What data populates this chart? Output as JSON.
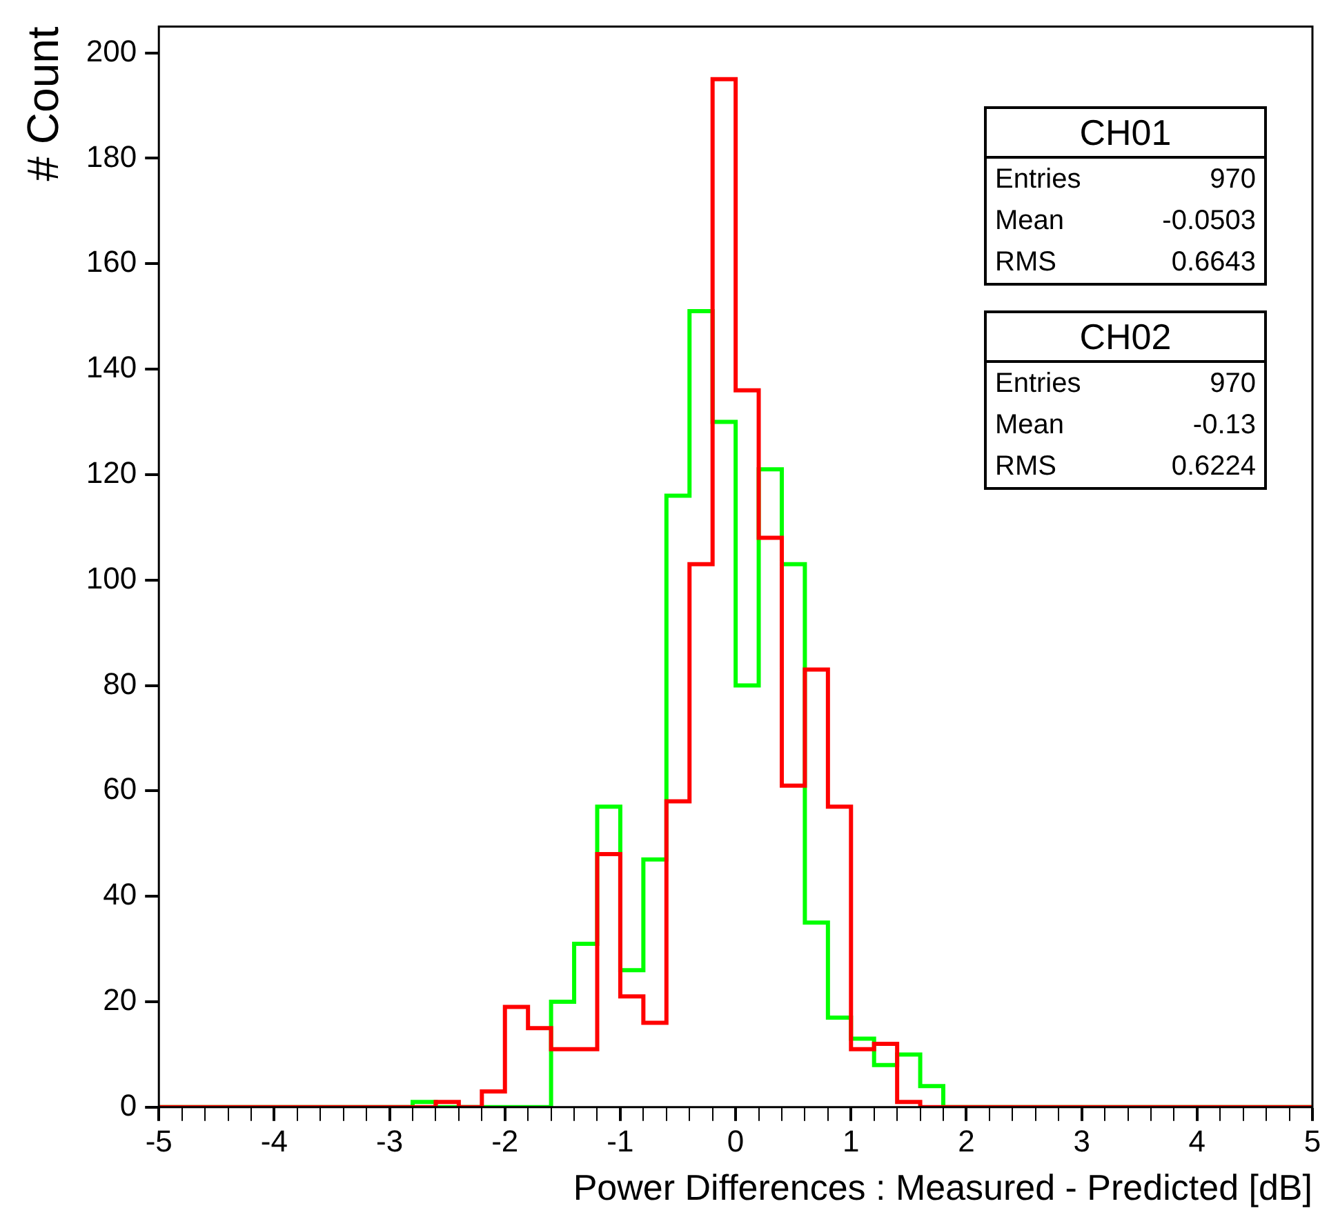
{
  "chart_data": {
    "type": "histogram",
    "xlabel": "Power Differences : Measured - Predicted [dB]",
    "ylabel": "# Count",
    "bins": [
      -5,
      -4.8,
      -4.6,
      -4.4,
      -4.2,
      -4,
      -3.8,
      -3.6,
      -3.4,
      -3.2,
      -3,
      -2.8,
      -2.6,
      -2.4,
      -2.2,
      -2,
      -1.8,
      -1.6,
      -1.4,
      -1.2,
      -1,
      -0.8,
      -0.6,
      -0.4,
      -0.2,
      0,
      0.2,
      0.4,
      0.6,
      0.8,
      1,
      1.2,
      1.4,
      1.6,
      1.8,
      2,
      2.2,
      2.4,
      2.6,
      2.8,
      3,
      3.2,
      3.4,
      3.6,
      3.8,
      4,
      4.2,
      4.4,
      4.6,
      4.8,
      5
    ],
    "series": [
      {
        "color": "#ff0000",
        "values": [
          0,
          0,
          0,
          0,
          0,
          0,
          0,
          0,
          0,
          0,
          0,
          0,
          1,
          0,
          3,
          19,
          15,
          11,
          11,
          48,
          21,
          16,
          58,
          103,
          195,
          136,
          108,
          61,
          83,
          57,
          11,
          12,
          1,
          0,
          0,
          0,
          0,
          0,
          0,
          0,
          0,
          0,
          0,
          0,
          0,
          0,
          0,
          0,
          0,
          0
        ]
      },
      {
        "color": "#00ff00",
        "values": [
          0,
          0,
          0,
          0,
          0,
          0,
          0,
          0,
          0,
          0,
          0,
          1,
          0,
          0,
          0,
          0,
          0,
          20,
          31,
          57,
          26,
          47,
          116,
          151,
          130,
          80,
          121,
          103,
          35,
          17,
          13,
          8,
          10,
          4,
          0,
          0,
          0,
          0,
          0,
          0,
          0,
          0,
          0,
          0,
          0,
          0,
          0,
          0,
          0,
          0
        ]
      }
    ],
    "xlim": [
      -5,
      5
    ],
    "xticks": [
      -5,
      {
        "value": -4.8,
        "label": null
      },
      {
        "value": -4.6,
        "label": null
      },
      {
        "value": -4.4,
        "label": null
      },
      {
        "value": -4.2,
        "label": null
      },
      -4,
      {
        "value": -3.8,
        "label": null
      },
      {
        "value": -3.6,
        "label": null
      },
      {
        "value": -3.4,
        "label": null
      },
      {
        "value": -3.2,
        "label": null
      },
      -3,
      {
        "value": -2.8,
        "label": null
      },
      {
        "value": -2.6,
        "label": null
      },
      {
        "value": -2.4,
        "label": null
      },
      {
        "value": -2.2,
        "label": null
      },
      -2,
      {
        "value": -1.8,
        "label": null
      },
      {
        "value": -1.6,
        "label": null
      },
      {
        "value": -1.4,
        "label": null
      },
      {
        "value": -1.2,
        "label": null
      },
      -1,
      {
        "value": -0.8,
        "label": null
      },
      {
        "value": -0.6,
        "label": null
      },
      {
        "value": -0.4,
        "label": null
      },
      {
        "value": -0.2,
        "label": null
      },
      0,
      {
        "value": 0.2,
        "label": null
      },
      {
        "value": 0.4,
        "label": null
      },
      {
        "value": 0.6,
        "label": null
      },
      {
        "value": 0.8,
        "label": null
      },
      1,
      {
        "value": 1.2,
        "label": null
      },
      {
        "value": 1.4,
        "label": null
      },
      {
        "value": 1.6,
        "label": null
      },
      {
        "value": 1.8,
        "label": null
      },
      2,
      {
        "value": 2.2,
        "label": null
      },
      {
        "value": 2.4,
        "label": null
      },
      {
        "value": 2.6,
        "label": null
      },
      {
        "value": 2.8,
        "label": null
      },
      3,
      {
        "value": 3.2,
        "label": null
      },
      {
        "value": 3.4,
        "label": null
      },
      {
        "value": 3.6,
        "label": null
      },
      {
        "value": 3.8,
        "label": null
      },
      4,
      {
        "value": 4.2,
        "label": null
      },
      {
        "value": 4.4,
        "label": null
      },
      {
        "value": 4.6,
        "label": null
      },
      {
        "value": 4.8,
        "label": null
      },
      5
    ],
    "ylim": [
      0,
      205
    ],
    "yticks": [
      0,
      20,
      40,
      60,
      80,
      100,
      120,
      140,
      160,
      180,
      200
    ],
    "grid": false,
    "annotations": [
      "CH01",
      "Entries",
      "970",
      "Mean",
      "-0.0503",
      "RMS",
      "0.6643",
      "CH02",
      "Entries",
      "970",
      "Mean",
      "-0.13",
      "RMS",
      "0.6224"
    ]
  }
}
